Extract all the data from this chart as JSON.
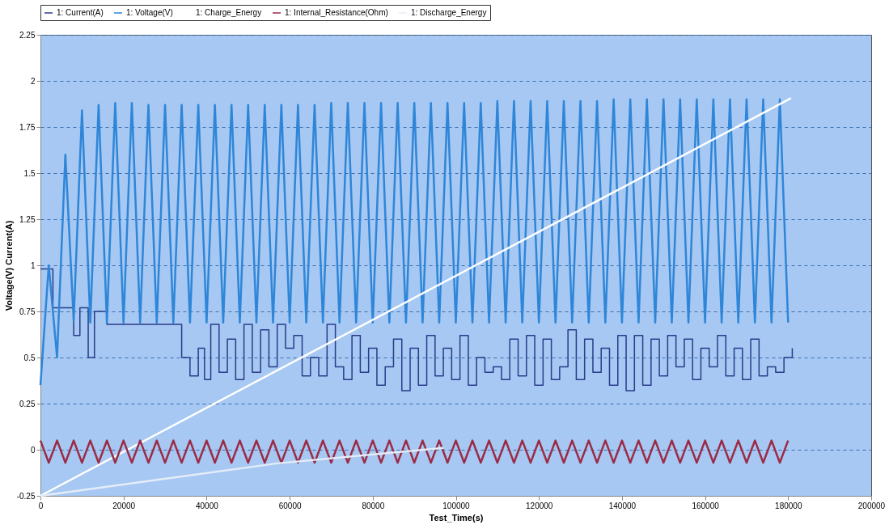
{
  "chart_data": {
    "type": "line",
    "xlabel": "Test_Time(s)",
    "ylabel": "Voltage(V) Current(A)",
    "x": [
      0,
      2000,
      4000,
      6000,
      8000,
      10000,
      12000,
      14000,
      16000,
      18000,
      20000,
      22000,
      24000,
      26000,
      28000,
      30000,
      32000,
      34000,
      36000,
      38000,
      40000,
      42000,
      44000,
      46000,
      48000,
      50000,
      52000,
      54000,
      56000,
      58000,
      60000,
      62000,
      64000,
      66000,
      68000,
      70000,
      72000,
      74000,
      76000,
      78000,
      80000,
      82000,
      84000,
      86000,
      88000,
      90000,
      92000,
      94000,
      96000,
      98000,
      100000,
      102000,
      104000,
      106000,
      108000,
      110000,
      112000,
      114000,
      116000,
      118000,
      120000,
      122000,
      124000,
      126000,
      128000,
      130000,
      132000,
      134000,
      136000,
      138000,
      140000,
      142000,
      144000,
      146000,
      148000,
      150000,
      152000,
      154000,
      156000,
      158000,
      160000,
      162000,
      164000,
      166000,
      168000,
      170000,
      172000,
      174000,
      176000,
      178000,
      180000
    ],
    "series": [
      {
        "name": "1: Current(A)",
        "color": "#2a3c8a",
        "type": "step",
        "x": [
          0,
          3000,
          8000,
          9500,
          11500,
          13000,
          16000,
          34000,
          36000,
          38000,
          39500,
          41000,
          43000,
          45000,
          47000,
          49000,
          51000,
          53000,
          55000,
          57000,
          59000,
          61000,
          63000,
          65000,
          67000,
          69000,
          71000,
          73000,
          75000,
          77000,
          79000,
          81000,
          83000,
          85000,
          87000,
          89000,
          91000,
          93000,
          95000,
          97000,
          99000,
          101000,
          103000,
          105000,
          107000,
          109000,
          111000,
          113000,
          115000,
          117000,
          119000,
          121000,
          123000,
          125000,
          127000,
          129000,
          131000,
          133000,
          135000,
          137000,
          139000,
          141000,
          143000,
          145000,
          147000,
          149000,
          151000,
          153000,
          155000,
          157000,
          159000,
          161000,
          163000,
          165000,
          167000,
          169000,
          171000,
          173000,
          175000,
          177000,
          179000,
          181000
        ],
        "values": [
          0.98,
          0.77,
          0.62,
          0.77,
          0.5,
          0.75,
          0.68,
          0.5,
          0.4,
          0.55,
          0.38,
          0.68,
          0.42,
          0.6,
          0.38,
          0.68,
          0.42,
          0.65,
          0.45,
          0.68,
          0.55,
          0.62,
          0.4,
          0.5,
          0.4,
          0.68,
          0.45,
          0.38,
          0.62,
          0.42,
          0.55,
          0.35,
          0.45,
          0.6,
          0.32,
          0.55,
          0.35,
          0.62,
          0.4,
          0.55,
          0.38,
          0.62,
          0.35,
          0.5,
          0.42,
          0.45,
          0.38,
          0.6,
          0.4,
          0.62,
          0.35,
          0.6,
          0.38,
          0.45,
          0.65,
          0.38,
          0.6,
          0.42,
          0.55,
          0.35,
          0.62,
          0.32,
          0.62,
          0.35,
          0.6,
          0.4,
          0.62,
          0.45,
          0.6,
          0.38,
          0.55,
          0.45,
          0.62,
          0.4,
          0.55,
          0.38,
          0.6,
          0.4,
          0.45,
          0.42,
          0.5,
          0.55
        ]
      },
      {
        "name": "1: Voltage(V)",
        "color": "#2f86d8",
        "values": [
          0.35,
          1.0,
          0.5,
          1.6,
          0.7,
          1.84,
          0.69,
          1.87,
          0.69,
          1.88,
          0.69,
          1.88,
          0.69,
          1.87,
          0.69,
          1.87,
          0.69,
          1.87,
          0.69,
          1.87,
          0.69,
          1.87,
          0.69,
          1.87,
          0.69,
          1.87,
          0.69,
          1.87,
          0.69,
          1.87,
          0.69,
          1.87,
          0.69,
          1.87,
          0.69,
          1.88,
          0.69,
          1.88,
          0.69,
          1.88,
          0.69,
          1.88,
          0.69,
          1.88,
          0.69,
          1.88,
          0.69,
          1.88,
          0.69,
          1.88,
          0.69,
          1.88,
          0.69,
          1.88,
          0.69,
          1.89,
          0.69,
          1.89,
          0.69,
          1.89,
          0.69,
          1.89,
          0.69,
          1.89,
          0.69,
          1.89,
          0.69,
          1.89,
          0.69,
          1.9,
          0.69,
          1.9,
          0.69,
          1.9,
          0.69,
          1.9,
          0.69,
          1.9,
          0.69,
          1.9,
          0.69,
          1.9,
          0.69,
          1.9,
          0.69,
          1.9,
          0.69,
          1.9,
          0.69,
          1.9,
          0.69
        ]
      },
      {
        "name": "1: Charge_Energy",
        "color": "#ffffff",
        "x": [
          0,
          180700
        ],
        "values": [
          -0.25,
          1.906
        ]
      },
      {
        "name": "1: Internal_Resistance(Ohm)",
        "color": "#9b2c47",
        "values": [
          0.05,
          -0.07,
          0.05,
          -0.07,
          0.05,
          -0.07,
          0.05,
          -0.07,
          0.05,
          -0.07,
          0.05,
          -0.07,
          0.05,
          -0.07,
          0.05,
          -0.07,
          0.05,
          -0.07,
          0.05,
          -0.07,
          0.05,
          -0.07,
          0.05,
          -0.07,
          0.05,
          -0.07,
          0.05,
          -0.07,
          0.05,
          -0.07,
          0.05,
          -0.07,
          0.05,
          -0.07,
          0.05,
          -0.07,
          0.05,
          -0.07,
          0.05,
          -0.07,
          0.05,
          -0.07,
          0.05,
          -0.07,
          0.05,
          -0.07,
          0.05,
          -0.07,
          0.05,
          -0.07,
          0.05,
          -0.07,
          0.05,
          -0.07,
          0.05,
          -0.07,
          0.05,
          -0.07,
          0.05,
          -0.07,
          0.05,
          -0.07,
          0.05,
          -0.07,
          0.05,
          -0.07,
          0.05,
          -0.07,
          0.05,
          -0.07,
          0.05,
          -0.07,
          0.05,
          -0.07,
          0.05,
          -0.07,
          0.05,
          -0.07,
          0.05,
          -0.07,
          0.05,
          -0.07,
          0.05,
          -0.07,
          0.05,
          -0.07,
          0.05,
          -0.07,
          0.05,
          -0.07,
          0.05
        ]
      },
      {
        "name": "1: Discharge_Energy",
        "color": "#e4ecf8",
        "x": [
          0,
          57000,
          97000
        ],
        "values": [
          -0.25,
          -0.074,
          0.01
        ]
      }
    ],
    "xlim": [
      0,
      200000
    ],
    "xticks": [
      0,
      20000,
      40000,
      60000,
      80000,
      100000,
      120000,
      140000,
      160000,
      180000,
      200000
    ],
    "ylim": [
      -0.25,
      2.25
    ],
    "yticks": [
      -0.25,
      0,
      0.25,
      0.5,
      0.75,
      1,
      1.25,
      1.5,
      1.75,
      2,
      2.25
    ],
    "grid": "y",
    "legend": "top"
  }
}
